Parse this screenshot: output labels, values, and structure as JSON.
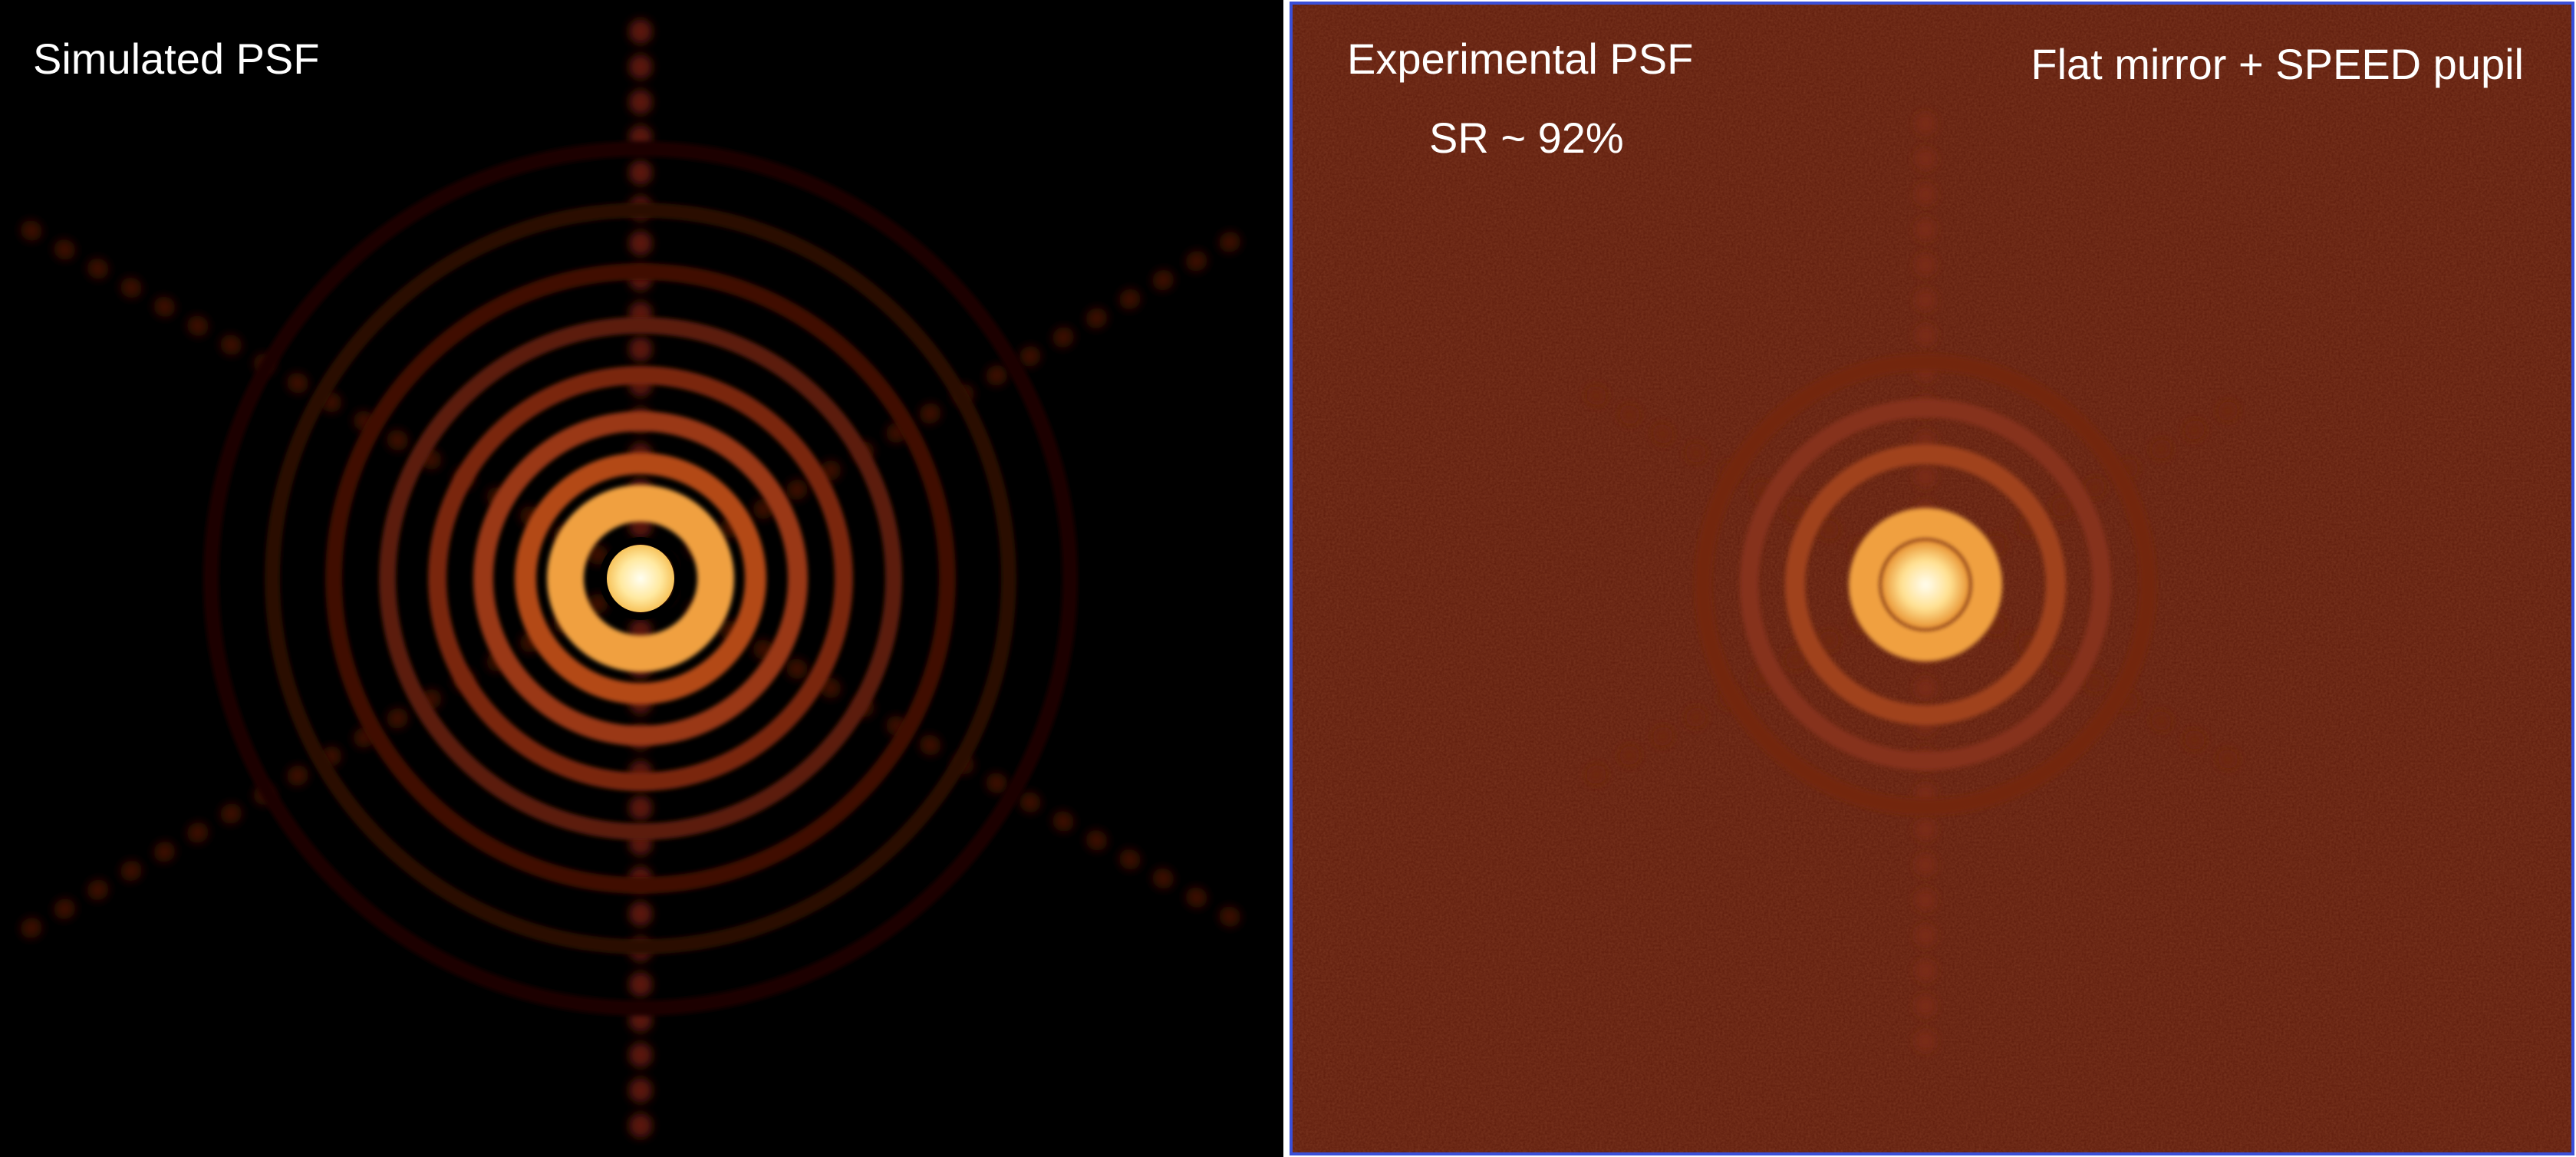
{
  "left_panel": {
    "label": "Simulated PSF"
  },
  "right_panel": {
    "label": "Experimental PSF",
    "note": "SR ~ 92%",
    "setup": "Flat mirror + SPEED pupil"
  }
}
